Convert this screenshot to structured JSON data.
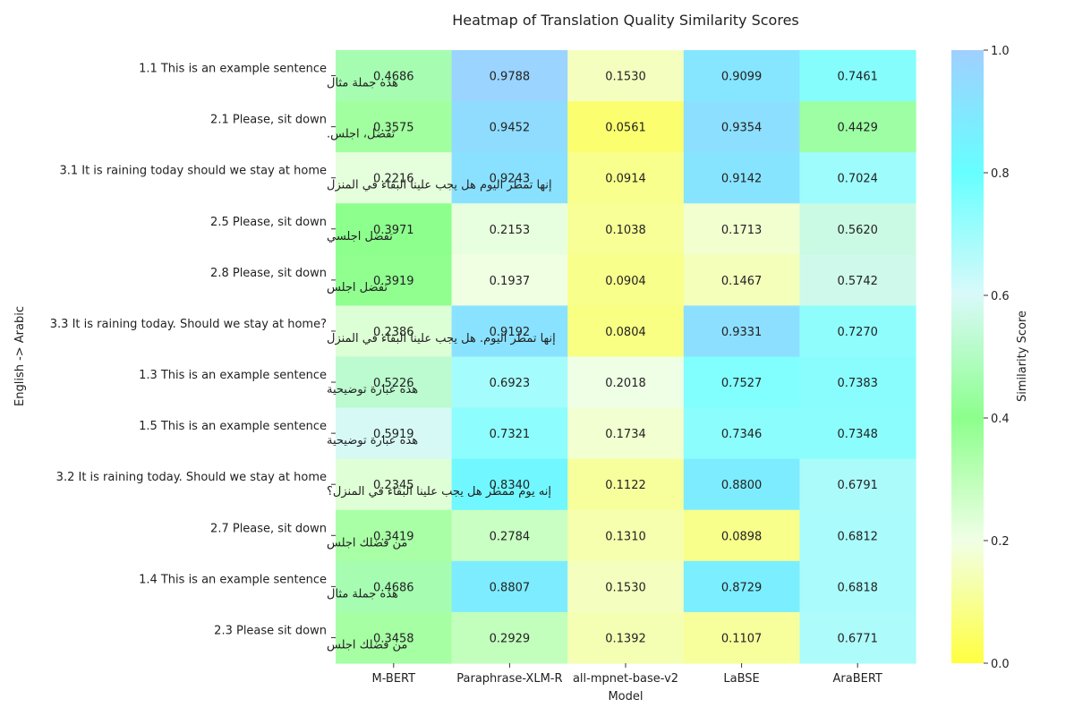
{
  "chart_data": {
    "type": "heatmap",
    "title": "Heatmap of Translation Quality Similarity Scores",
    "xlabel": "Model",
    "ylabel": "English -> Arabic",
    "colorbar_label": "Similarity Score",
    "colorbar_ticks": [
      "0.0",
      "0.2",
      "0.4",
      "0.6",
      "0.8",
      "1.0"
    ],
    "vmin": 0,
    "vmax": 1,
    "colormap": [
      [
        0.0,
        "#ffff40"
      ],
      [
        0.2,
        "#f0ffe6"
      ],
      [
        0.4,
        "#8cff8c"
      ],
      [
        0.6,
        "#d9f9f9"
      ],
      [
        0.8,
        "#66ffff"
      ],
      [
        1.0,
        "#a0cfff"
      ]
    ],
    "columns": [
      "M-BERT",
      "Paraphrase-XLM-R",
      "all-mpnet-base-v2",
      "LaBSE",
      "AraBERT"
    ],
    "rows": [
      {
        "en": "1.1 This is an example sentence",
        "ar": "هذه جملة مثال",
        "values": [
          0.4686,
          0.9788,
          0.153,
          0.9099,
          0.7461
        ]
      },
      {
        "en": "2.1 Please, sit down",
        "ar": "تفضل، اجلس.",
        "values": [
          0.3575,
          0.9452,
          0.0561,
          0.9354,
          0.4429
        ]
      },
      {
        "en": "3.1 It is raining today should we stay at home",
        "ar": "إنها تمطر اليوم هل يجب علينا البقاء في المنزل",
        "values": [
          0.2216,
          0.9243,
          0.0914,
          0.9142,
          0.7024
        ]
      },
      {
        "en": "2.5 Please, sit down",
        "ar": "تفضل اجلسي",
        "values": [
          0.3971,
          0.2153,
          0.1038,
          0.1713,
          0.562
        ]
      },
      {
        "en": "2.8 Please, sit down",
        "ar": "تفضل اجلس",
        "values": [
          0.3919,
          0.1937,
          0.0904,
          0.1467,
          0.5742
        ]
      },
      {
        "en": "3.3 It is raining today. Should we stay at home?",
        "ar": "إنها تمطر اليوم. هل يجب علينا البقاء في المنزل",
        "values": [
          0.2386,
          0.9192,
          0.0804,
          0.9331,
          0.727
        ]
      },
      {
        "en": "1.3 This is an example sentence",
        "ar": "هذه عبارة توضيحية",
        "values": [
          0.5226,
          0.6923,
          0.2018,
          0.7527,
          0.7383
        ]
      },
      {
        "en": "1.5 This is an example sentence",
        "ar": "هذه عبارة توضيحية",
        "values": [
          0.5919,
          0.7321,
          0.1734,
          0.7346,
          0.7348
        ]
      },
      {
        "en": "3.2 It is raining today. Should we stay at home",
        "ar": "إنه يوم ممطر هل يجب علينا البقاء في المنزل؟",
        "values": [
          0.2345,
          0.834,
          0.1122,
          0.88,
          0.6791
        ]
      },
      {
        "en": "2.7 Please, sit down",
        "ar": "من فضلك اجلس",
        "values": [
          0.3419,
          0.2784,
          0.131,
          0.0898,
          0.6812
        ]
      },
      {
        "en": "1.4 This is an example sentence",
        "ar": "هذه جملة مثال",
        "values": [
          0.4686,
          0.8807,
          0.153,
          0.8729,
          0.6818
        ]
      },
      {
        "en": "2.3 Please sit down",
        "ar": "من فضلك اجلس",
        "values": [
          0.3458,
          0.2929,
          0.1392,
          0.1107,
          0.6771
        ]
      }
    ]
  }
}
